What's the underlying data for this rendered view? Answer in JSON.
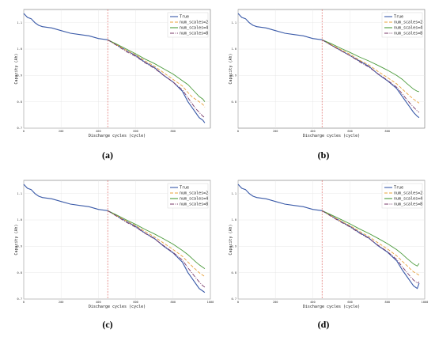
{
  "chart_data": [
    {
      "type": "line",
      "panel_label": "(a)",
      "xlabel": "Discharge cycles (cycle)",
      "ylabel": "Capacity (Ah)",
      "xlim": [
        0,
        1000
      ],
      "ylim": [
        0.7,
        1.15
      ],
      "xticks": [
        "0",
        "200",
        "400",
        "600",
        "800"
      ],
      "yticks": [
        "0.7",
        "0.8",
        "0.9",
        "1.0",
        "1.1"
      ],
      "grid": true,
      "legend_position": "top-right",
      "split_x": 450,
      "series": [
        {
          "name": "True",
          "color": "#3a5aa8",
          "dash": "",
          "x": [
            0,
            20,
            40,
            60,
            80,
            100,
            150,
            200,
            250,
            300,
            350,
            400,
            450,
            500,
            550,
            600,
            650,
            700,
            750,
            800,
            850,
            880,
            900,
            920,
            940,
            960,
            970
          ],
          "y": [
            1.135,
            1.12,
            1.115,
            1.1,
            1.09,
            1.085,
            1.08,
            1.07,
            1.06,
            1.055,
            1.05,
            1.04,
            1.035,
            1.015,
            0.995,
            0.975,
            0.95,
            0.93,
            0.9,
            0.875,
            0.84,
            0.8,
            0.78,
            0.76,
            0.74,
            0.73,
            0.72
          ]
        },
        {
          "name": "num_scales=2",
          "color": "#e8a13a",
          "dash": "4,2",
          "x": [
            450,
            500,
            550,
            600,
            650,
            700,
            750,
            800,
            850,
            880,
            900,
            920,
            940,
            960,
            970
          ],
          "y": [
            1.035,
            1.015,
            0.995,
            0.978,
            0.955,
            0.935,
            0.91,
            0.885,
            0.86,
            0.835,
            0.82,
            0.81,
            0.8,
            0.79,
            0.78
          ]
        },
        {
          "name": "num_scales=4",
          "color": "#4a9a3a",
          "dash": "",
          "x": [
            450,
            500,
            550,
            600,
            650,
            700,
            750,
            800,
            850,
            880,
            900,
            920,
            940,
            960,
            970
          ],
          "y": [
            1.035,
            1.018,
            1.0,
            0.982,
            0.962,
            0.945,
            0.925,
            0.905,
            0.88,
            0.865,
            0.85,
            0.835,
            0.82,
            0.81,
            0.8
          ]
        },
        {
          "name": "num_scales=8",
          "color": "#7a3a6a",
          "dash": "5,1.5,1,1.5",
          "x": [
            450,
            500,
            550,
            600,
            650,
            700,
            750,
            800,
            850,
            880,
            900,
            920,
            940,
            960,
            970
          ],
          "y": [
            1.035,
            1.013,
            0.99,
            0.972,
            0.948,
            0.927,
            0.9,
            0.875,
            0.845,
            0.815,
            0.795,
            0.775,
            0.76,
            0.745,
            0.74
          ]
        }
      ]
    },
    {
      "type": "line",
      "panel_label": "(b)",
      "xlabel": "Discharge cycles (cycle)",
      "ylabel": "Capacity (Ah)",
      "xlim": [
        0,
        1000
      ],
      "ylim": [
        0.7,
        1.15
      ],
      "xticks": [
        "0",
        "200",
        "400",
        "600",
        "800"
      ],
      "yticks": [
        "0.8",
        "0.9",
        "1.0",
        "1.1"
      ],
      "grid": true,
      "legend_position": "top-right",
      "split_x": 450,
      "series": [
        {
          "name": "True",
          "color": "#3a5aa8",
          "dash": "",
          "x": [
            0,
            20,
            40,
            60,
            80,
            100,
            150,
            200,
            250,
            300,
            350,
            400,
            450,
            500,
            550,
            600,
            650,
            700,
            750,
            800,
            850,
            880,
            900,
            920,
            940,
            960,
            970
          ],
          "y": [
            1.135,
            1.12,
            1.115,
            1.1,
            1.09,
            1.085,
            1.08,
            1.07,
            1.06,
            1.055,
            1.05,
            1.04,
            1.035,
            1.015,
            0.995,
            0.975,
            0.955,
            0.935,
            0.905,
            0.88,
            0.85,
            0.82,
            0.8,
            0.78,
            0.76,
            0.745,
            0.74
          ]
        },
        {
          "name": "num_scales=2",
          "color": "#e8a13a",
          "dash": "4,2",
          "x": [
            450,
            500,
            550,
            600,
            650,
            700,
            750,
            800,
            850,
            880,
            900,
            920,
            940,
            960,
            970
          ],
          "y": [
            1.035,
            1.016,
            0.998,
            0.98,
            0.958,
            0.94,
            0.915,
            0.892,
            0.868,
            0.848,
            0.835,
            0.822,
            0.81,
            0.8,
            0.795
          ]
        },
        {
          "name": "num_scales=4",
          "color": "#4a9a3a",
          "dash": "",
          "x": [
            450,
            500,
            550,
            600,
            650,
            700,
            750,
            800,
            850,
            880,
            900,
            920,
            940,
            960,
            970
          ],
          "y": [
            1.035,
            1.02,
            1.003,
            0.987,
            0.97,
            0.955,
            0.938,
            0.92,
            0.9,
            0.885,
            0.872,
            0.86,
            0.848,
            0.84,
            0.838
          ]
        },
        {
          "name": "num_scales=8",
          "color": "#7a3a6a",
          "dash": "5,1.5,1,1.5",
          "x": [
            450,
            500,
            550,
            600,
            650,
            700,
            750,
            800,
            850,
            880,
            900,
            920,
            940,
            960,
            970
          ],
          "y": [
            1.035,
            1.014,
            0.994,
            0.975,
            0.952,
            0.932,
            0.906,
            0.882,
            0.855,
            0.83,
            0.812,
            0.795,
            0.78,
            0.765,
            0.76
          ]
        }
      ]
    },
    {
      "type": "line",
      "panel_label": "(c)",
      "xlabel": "Discharge cycles (cycle)",
      "ylabel": "Capacity (Ah)",
      "xlim": [
        0,
        1000
      ],
      "ylim": [
        0.7,
        1.15
      ],
      "xticks": [
        "0",
        "200",
        "400",
        "600",
        "800",
        "1000"
      ],
      "yticks": [
        "0.7",
        "0.8",
        "0.9",
        "1.0",
        "1.1"
      ],
      "grid": true,
      "legend_position": "top-right",
      "split_x": 450,
      "series": [
        {
          "name": "True",
          "color": "#3a5aa8",
          "dash": "",
          "x": [
            0,
            20,
            40,
            60,
            80,
            100,
            150,
            200,
            250,
            300,
            350,
            400,
            450,
            500,
            550,
            600,
            650,
            700,
            750,
            800,
            850,
            880,
            900,
            920,
            940,
            960,
            970
          ],
          "y": [
            1.135,
            1.12,
            1.115,
            1.1,
            1.09,
            1.085,
            1.08,
            1.07,
            1.06,
            1.055,
            1.05,
            1.04,
            1.035,
            1.015,
            0.995,
            0.975,
            0.95,
            0.93,
            0.9,
            0.875,
            0.84,
            0.8,
            0.78,
            0.76,
            0.74,
            0.73,
            0.725
          ]
        },
        {
          "name": "num_scales=2",
          "color": "#e8a13a",
          "dash": "4,2",
          "x": [
            450,
            500,
            550,
            600,
            650,
            700,
            750,
            800,
            850,
            880,
            900,
            920,
            940,
            960,
            970
          ],
          "y": [
            1.035,
            1.015,
            0.996,
            0.978,
            0.956,
            0.936,
            0.912,
            0.888,
            0.862,
            0.84,
            0.826,
            0.813,
            0.8,
            0.79,
            0.785
          ]
        },
        {
          "name": "num_scales=4",
          "color": "#4a9a3a",
          "dash": "",
          "x": [
            450,
            500,
            550,
            600,
            650,
            700,
            750,
            800,
            850,
            880,
            900,
            920,
            940,
            960,
            970
          ],
          "y": [
            1.035,
            1.018,
            1.0,
            0.983,
            0.964,
            0.947,
            0.928,
            0.908,
            0.884,
            0.868,
            0.855,
            0.842,
            0.83,
            0.82,
            0.815
          ]
        },
        {
          "name": "num_scales=8",
          "color": "#7a3a6a",
          "dash": "5,1.5,1,1.5",
          "x": [
            450,
            500,
            550,
            600,
            650,
            700,
            750,
            800,
            850,
            880,
            900,
            920,
            940,
            960,
            970
          ],
          "y": [
            1.035,
            1.013,
            0.991,
            0.972,
            0.949,
            0.928,
            0.902,
            0.877,
            0.848,
            0.818,
            0.8,
            0.782,
            0.765,
            0.75,
            0.745
          ]
        }
      ]
    },
    {
      "type": "line",
      "panel_label": "(d)",
      "xlabel": "Discharge cycles (cycle)",
      "ylabel": "Capacity (Ah)",
      "xlim": [
        0,
        1000
      ],
      "ylim": [
        0.7,
        1.15
      ],
      "xticks": [
        "0",
        "200",
        "400",
        "600",
        "800",
        "1000"
      ],
      "yticks": [
        "0.7",
        "0.8",
        "0.9",
        "1.0",
        "1.1"
      ],
      "grid": true,
      "legend_position": "top-right",
      "split_x": 450,
      "series": [
        {
          "name": "True",
          "color": "#3a5aa8",
          "dash": "",
          "x": [
            0,
            20,
            40,
            60,
            80,
            100,
            150,
            200,
            250,
            300,
            350,
            400,
            450,
            500,
            550,
            600,
            650,
            700,
            750,
            800,
            850,
            880,
            900,
            920,
            940,
            960,
            970
          ],
          "y": [
            1.135,
            1.12,
            1.115,
            1.1,
            1.09,
            1.085,
            1.08,
            1.07,
            1.06,
            1.055,
            1.05,
            1.04,
            1.035,
            1.015,
            0.995,
            0.975,
            0.952,
            0.932,
            0.902,
            0.878,
            0.845,
            0.81,
            0.79,
            0.77,
            0.75,
            0.74,
            0.76
          ]
        },
        {
          "name": "num_scales=2",
          "color": "#e8a13a",
          "dash": "4,2",
          "x": [
            450,
            500,
            550,
            600,
            650,
            700,
            750,
            800,
            850,
            880,
            900,
            920,
            940,
            960,
            970
          ],
          "y": [
            1.035,
            1.015,
            0.996,
            0.978,
            0.957,
            0.937,
            0.913,
            0.89,
            0.864,
            0.843,
            0.83,
            0.816,
            0.803,
            0.795,
            0.79
          ]
        },
        {
          "name": "num_scales=4",
          "color": "#4a9a3a",
          "dash": "",
          "x": [
            450,
            500,
            550,
            600,
            650,
            700,
            750,
            800,
            850,
            880,
            900,
            920,
            940,
            960,
            970
          ],
          "y": [
            1.035,
            1.019,
            1.002,
            0.985,
            0.966,
            0.949,
            0.93,
            0.91,
            0.887,
            0.87,
            0.857,
            0.845,
            0.833,
            0.825,
            0.835
          ]
        },
        {
          "name": "num_scales=8",
          "color": "#7a3a6a",
          "dash": "5,1.5,1,1.5",
          "x": [
            450,
            500,
            550,
            600,
            650,
            700,
            750,
            800,
            850,
            880,
            900,
            920,
            940,
            960,
            970
          ],
          "y": [
            1.035,
            1.013,
            0.992,
            0.973,
            0.95,
            0.93,
            0.904,
            0.88,
            0.85,
            0.822,
            0.805,
            0.788,
            0.772,
            0.76,
            0.765
          ]
        }
      ]
    }
  ]
}
